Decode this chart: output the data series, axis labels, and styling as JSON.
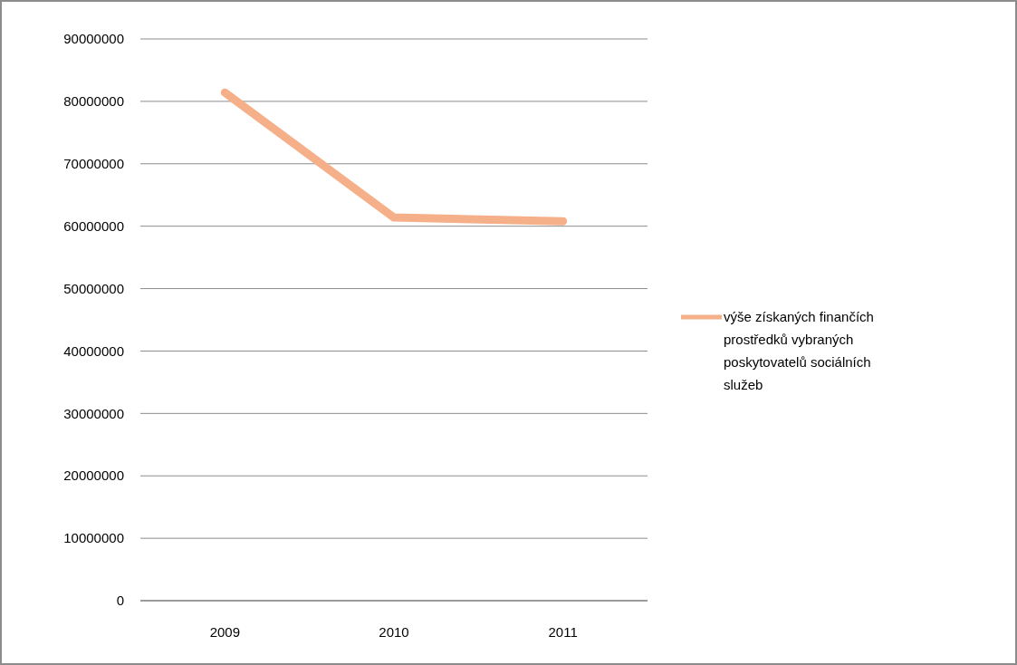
{
  "chart_data": {
    "type": "line",
    "categories": [
      "2009",
      "2010",
      "2011"
    ],
    "series": [
      {
        "name": "výše získaných finančích prostředků vybraných poskytovatelů sociálních služeb",
        "color": "#f5b08a",
        "values": [
          81400000,
          61400000,
          60800000
        ]
      }
    ],
    "ylim": [
      0,
      90000000
    ],
    "yticks": [
      0,
      10000000,
      20000000,
      30000000,
      40000000,
      50000000,
      60000000,
      70000000,
      80000000,
      90000000
    ],
    "grid": "y",
    "legend": "right",
    "marker": "none",
    "line_style": "solid"
  }
}
